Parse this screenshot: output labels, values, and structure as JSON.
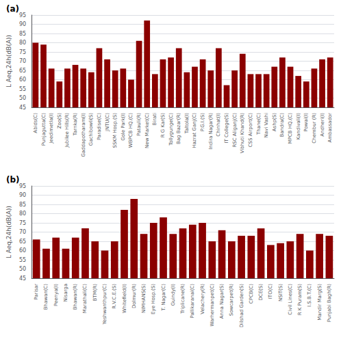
{
  "chart_data": [
    {
      "type": "bar",
      "title": "(a)",
      "y_label": "L Aeq,24h(dB(A))",
      "categories": [
        "Abids(C)",
        "Punjagutta(C)",
        "Jeedimetla(I)",
        "Zoo(S)",
        "Jubilee Hills(R)",
        "Tarnka(R)",
        "Gaddapotharam(I)",
        "Gachibowli(S)",
        "Paradise(C)",
        "JNTU(C)",
        "SSKM Hosp.(S)",
        "Gole Park(I)",
        "WBPCB HQ.(C)",
        "Patauli(R)",
        "New Market(C)",
        "Birati",
        "R G Kar(S)",
        "Tollygunge(C)",
        "Bag Bazar(R)",
        "Taltola(I)",
        "Hazrat Ganj(C)",
        "P.G.I.(S)",
        "Indira Nagar(R)",
        "Chinhat(I)",
        "IT College(S)",
        "RSC Aliganj(C)",
        "Vibhuti Khand(R)",
        "CSS Airport(C)",
        "Thane(C)",
        "Navi Vashi",
        "Ashp(S)",
        "Bandra(C)",
        "MPCB HQ.(C)",
        "Kandivali(I)",
        "Powai(I)",
        "Chembur (R)",
        "Andheri(I)",
        "Ambassador"
      ],
      "values": [
        80,
        79,
        66,
        59,
        66,
        68,
        66,
        64,
        77,
        71,
        65,
        66,
        60,
        81,
        92,
        63,
        71,
        72,
        77,
        64,
        67,
        71,
        65,
        77,
        57,
        65,
        74,
        63,
        63,
        63,
        67,
        72,
        67,
        62,
        59,
        66,
        71,
        72
      ],
      "color": "#8B0000",
      "ylim": [
        45,
        95
      ],
      "yticks": [
        45,
        50,
        55,
        60,
        65,
        70,
        75,
        80,
        85,
        90,
        95
      ],
      "grid": true
    },
    {
      "type": "bar",
      "title": "(b)",
      "y_label": "L Aeq,24h(dB(A))",
      "categories": [
        "Parisar",
        "Bhawan(C)",
        "Peenya(I)",
        "Nisarga",
        "Bhawan(R)",
        "Marathali(C)",
        "BTM(R)",
        "Yeshwanthpur(C)",
        "R.V.C.E.(S)",
        "Whitefield(I)",
        "Dolmur(R)",
        "NIMHANS(S)",
        "Eye Hosp.(S)",
        "T. Nagar(C)",
        "Guindy(I)",
        "Triplicane(R)",
        "Pallikaranai(C)",
        "Velachery(R)",
        "Warhermanpet(C)",
        "Anna Nagar(S)",
        "Sowcarpet(R)",
        "Dilshad Garden(S)",
        "CPCB(C)",
        "DCE(S)",
        "ITO(C)",
        "NSIT(S)",
        "Civil Lines(C)",
        "R K Puram(S)",
        "I.S.B.T.(C)",
        "Mandir Marg(S)",
        "Punjabi Bagh(R)"
      ],
      "values": [
        66,
        61,
        67,
        61,
        67,
        72,
        65,
        60,
        65,
        82,
        88,
        69,
        75,
        78,
        69,
        72,
        74,
        75,
        65,
        71,
        65,
        68,
        68,
        72,
        63,
        64,
        65,
        69,
        60,
        69,
        68
      ],
      "color": "#8B0000",
      "ylim": [
        45,
        95
      ],
      "yticks": [
        45,
        50,
        55,
        60,
        65,
        70,
        75,
        80,
        85,
        90,
        95
      ],
      "grid": true
    }
  ]
}
